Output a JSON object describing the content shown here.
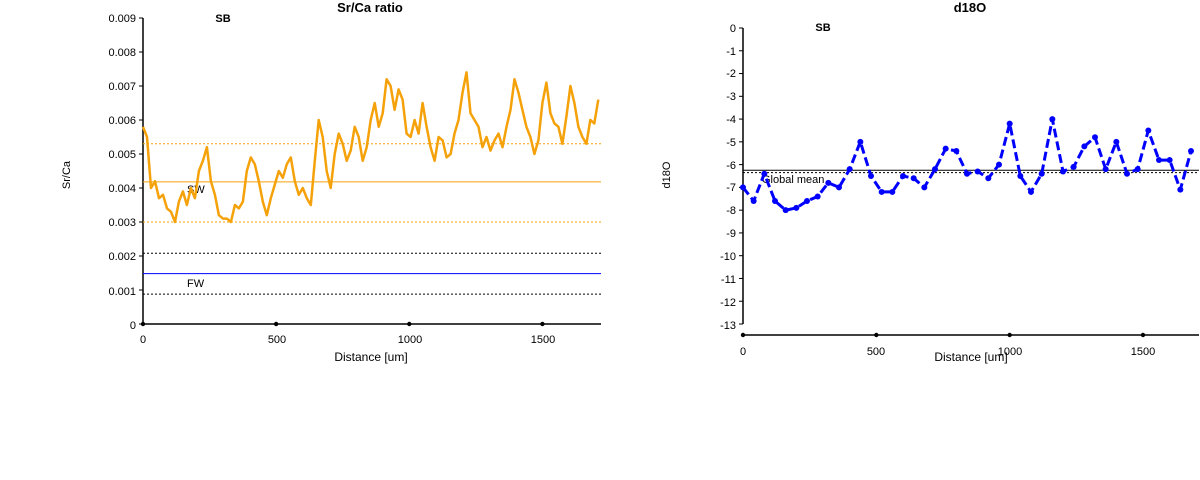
{
  "chart_data": [
    {
      "type": "line",
      "title": "Sr/Ca ratio",
      "panel_label": "SB",
      "xlabel": "Distance [um]",
      "ylabel": "Sr/Ca",
      "xlim": [
        0,
        1720
      ],
      "ylim": [
        0,
        0.009
      ],
      "xticks": [
        "0",
        "500",
        "1000",
        "1500"
      ],
      "xtick_values": [
        0,
        500,
        1000,
        1500
      ],
      "yticks": [
        "0",
        "0.001",
        "0.002",
        "0.003",
        "0.004",
        "0.005",
        "0.006",
        "0.007",
        "0.008",
        "0.009"
      ],
      "ytick_values": [
        0,
        0.001,
        0.002,
        0.003,
        0.004,
        0.005,
        0.006,
        0.007,
        0.008,
        0.009
      ],
      "series": [
        {
          "color": "#f5a20a",
          "x": [
            0,
            15,
            30,
            45,
            60,
            75,
            90,
            105,
            120,
            135,
            150,
            165,
            180,
            195,
            210,
            225,
            240,
            255,
            270,
            285,
            300,
            315,
            330,
            345,
            360,
            375,
            390,
            405,
            420,
            435,
            450,
            465,
            480,
            495,
            510,
            525,
            540,
            555,
            570,
            585,
            600,
            615,
            630,
            645,
            660,
            675,
            690,
            705,
            720,
            735,
            750,
            765,
            780,
            795,
            810,
            825,
            840,
            855,
            870,
            885,
            900,
            915,
            930,
            945,
            960,
            975,
            990,
            1005,
            1020,
            1035,
            1050,
            1065,
            1080,
            1095,
            1110,
            1125,
            1140,
            1155,
            1170,
            1185,
            1200,
            1215,
            1230,
            1245,
            1260,
            1275,
            1290,
            1305,
            1320,
            1335,
            1350,
            1365,
            1380,
            1395,
            1410,
            1425,
            1440,
            1455,
            1470,
            1485,
            1500,
            1515,
            1530,
            1545,
            1560,
            1575,
            1590,
            1605,
            1620,
            1635,
            1650,
            1665,
            1680,
            1695,
            1710
          ],
          "values": [
            0.0058,
            0.0055,
            0.004,
            0.0042,
            0.0037,
            0.0038,
            0.0034,
            0.0033,
            0.003,
            0.0036,
            0.0039,
            0.0035,
            0.004,
            0.0037,
            0.0045,
            0.0048,
            0.0052,
            0.0042,
            0.0038,
            0.0032,
            0.0031,
            0.0031,
            0.003,
            0.0035,
            0.0034,
            0.0036,
            0.0045,
            0.0049,
            0.0047,
            0.0042,
            0.0036,
            0.0032,
            0.0037,
            0.0041,
            0.0045,
            0.0043,
            0.0047,
            0.0049,
            0.0042,
            0.0038,
            0.004,
            0.0037,
            0.0035,
            0.0048,
            0.006,
            0.0055,
            0.0045,
            0.004,
            0.005,
            0.0056,
            0.0053,
            0.0048,
            0.0051,
            0.0058,
            0.0055,
            0.0048,
            0.0052,
            0.006,
            0.0065,
            0.0058,
            0.0062,
            0.0072,
            0.007,
            0.0063,
            0.0069,
            0.0066,
            0.0056,
            0.0055,
            0.006,
            0.0056,
            0.0065,
            0.0058,
            0.0052,
            0.0048,
            0.0055,
            0.0054,
            0.0049,
            0.005,
            0.0056,
            0.006,
            0.0068,
            0.0074,
            0.0062,
            0.006,
            0.0058,
            0.0052,
            0.0055,
            0.0051,
            0.0054,
            0.0056,
            0.0052,
            0.0058,
            0.0063,
            0.0072,
            0.0068,
            0.0063,
            0.0058,
            0.0055,
            0.005,
            0.0054,
            0.0065,
            0.0071,
            0.0062,
            0.0059,
            0.0058,
            0.0053,
            0.0061,
            0.007,
            0.0065,
            0.0058,
            0.0055,
            0.0053,
            0.006,
            0.0059,
            0.0066
          ]
        }
      ],
      "reference_lines": [
        {
          "name": "",
          "value": 0.0053,
          "color": "#f5a20a",
          "style": "dotted"
        },
        {
          "name": "",
          "value": 0.00418,
          "color": "#f5a20a",
          "style": "solid"
        },
        {
          "name": "",
          "value": 0.003,
          "color": "#f5a20a",
          "style": "dotted"
        },
        {
          "name": "",
          "value": 0.00208,
          "color": "#000000",
          "style": "dotted"
        },
        {
          "name": "",
          "value": 0.00148,
          "color": "#0000ff",
          "style": "solid"
        },
        {
          "name": "",
          "value": 0.00088,
          "color": "#000000",
          "style": "dotted"
        }
      ],
      "annotations": [
        {
          "text": "SW",
          "x": 170,
          "y": 0.0039
        },
        {
          "text": "FW",
          "x": 170,
          "y": 0.00118
        }
      ],
      "grid": false
    },
    {
      "type": "line",
      "title": "d18O",
      "panel_label": "SB",
      "xlabel": "Distance [um]",
      "ylabel": "d18O",
      "xlim": [
        0,
        1710
      ],
      "ylim": [
        -13,
        0
      ],
      "xticks": [
        "0",
        "500",
        "1000",
        "1500"
      ],
      "xtick_values": [
        0,
        500,
        1000,
        1500
      ],
      "yticks": [
        "0",
        "-1",
        "-2",
        "-3",
        "-4",
        "-5",
        "-6",
        "-7",
        "-8",
        "-9",
        "-10",
        "-11",
        "-12",
        "-13"
      ],
      "ytick_values": [
        0,
        -1,
        -2,
        -3,
        -4,
        -5,
        -6,
        -7,
        -8,
        -9,
        -10,
        -11,
        -12,
        -13
      ],
      "series": [
        {
          "color": "#0000ff",
          "x": [
            0,
            40,
            80,
            120,
            160,
            200,
            240,
            280,
            320,
            360,
            400,
            440,
            480,
            520,
            560,
            600,
            640,
            680,
            720,
            760,
            800,
            840,
            880,
            920,
            960,
            1000,
            1040,
            1080,
            1120,
            1160,
            1200,
            1240,
            1280,
            1320,
            1360,
            1400,
            1440,
            1480,
            1520,
            1560,
            1600,
            1640,
            1680
          ],
          "values": [
            -7.0,
            -7.6,
            -6.4,
            -7.6,
            -8.0,
            -7.9,
            -7.6,
            -7.4,
            -6.8,
            -7.0,
            -6.2,
            -5.0,
            -6.5,
            -7.2,
            -7.2,
            -6.5,
            -6.6,
            -7.0,
            -6.2,
            -5.3,
            -5.4,
            -6.4,
            -6.3,
            -6.6,
            -6.0,
            -4.2,
            -6.5,
            -7.2,
            -6.4,
            -4.0,
            -6.3,
            -6.1,
            -5.2,
            -4.8,
            -6.2,
            -5.0,
            -6.4,
            -6.2,
            -4.5,
            -5.8,
            -5.8,
            -7.1,
            -5.4
          ]
        }
      ],
      "reference_lines": [
        {
          "name": "",
          "value": -6.25,
          "color": "#000000",
          "style": "solid"
        },
        {
          "name": "",
          "value": -6.35,
          "color": "#000000",
          "style": "dotted"
        }
      ],
      "annotations": [
        {
          "text": "Global mean",
          "x": 80,
          "y": -6.5
        }
      ],
      "grid": false
    }
  ]
}
